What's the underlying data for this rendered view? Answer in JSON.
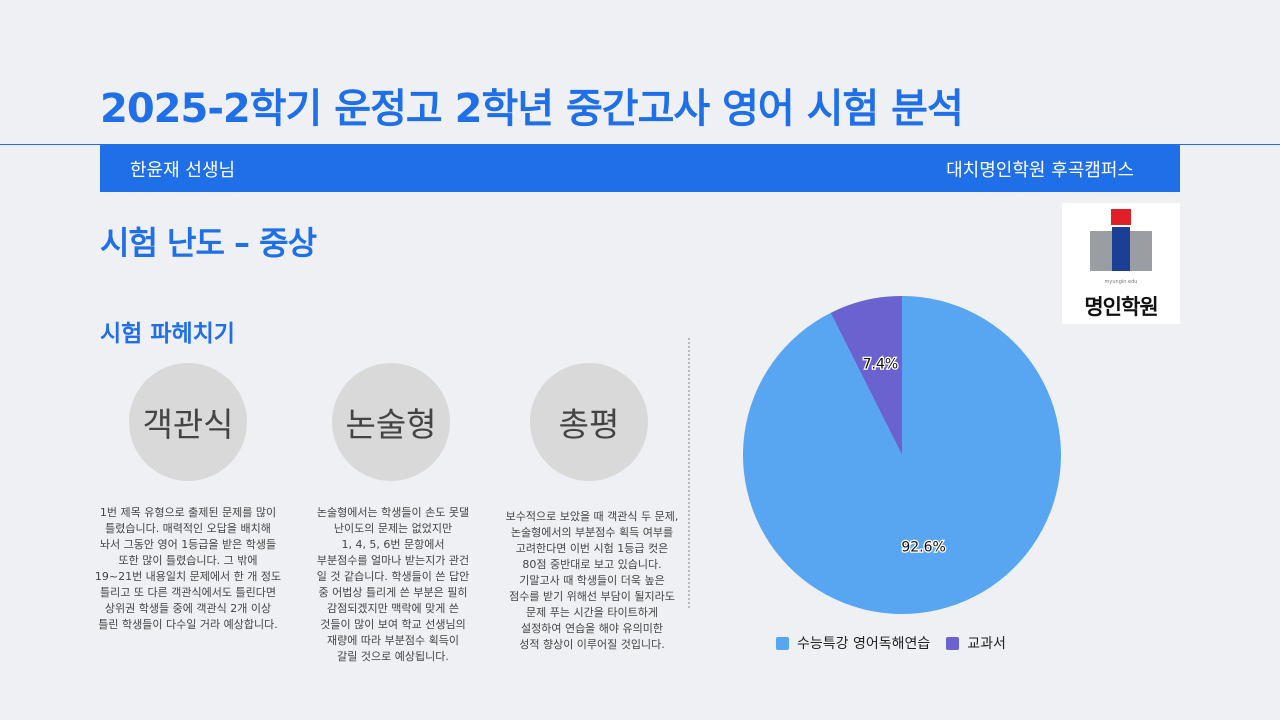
{
  "header": {
    "title": "2025-2학기 운정고 2학년 중간고사 영어 시험 분석",
    "teacher": "한윤재 선생님",
    "academy": "대치명인학원 후곡캠퍼스"
  },
  "difficulty": "시험 난도 – 중상",
  "section_title": "시험 파헤치기",
  "logo": {
    "small_text": "myungin edu",
    "name": "명인학원"
  },
  "cards": [
    {
      "label": "객관식",
      "text": "1번 제목 유형으로 출제된 문제를 많이\n틀렸습니다. 매력적인 오답을 배치해\n놔서 그동안 영어 1등급을 받은 학생들\n또한 많이 틀렸습니다. 그 밖에\n19~21번 내용일치 문제에서 한 개 정도\n틀리고 또 다른 객관식에서도 틀린다면\n상위권 학생들 중에 객관식 2개 이상\n틀린 학생들이 다수일 거라 예상합니다."
    },
    {
      "label": "논술형",
      "text": "논술형에서는 학생들이 손도 못댈\n난이도의 문제는 없었지만\n1, 4, 5, 6번 문항에서\n부분점수를 얼마나 받는지가 관건\n일 것 같습니다. 학생들이 쓴 답안\n중 어법상 틀리게 쓴 부분은 필히\n감점되겠지만 맥락에 맞게 쓴\n것들이 많이 보여 학교 선생님의\n재량에 따라 부분점수 획득이\n갈릴 것으로 예상됩니다."
    },
    {
      "label": "총평",
      "text": "보수적으로 보았을 때 객관식 두 문제,\n논술형에서의 부분점수 획득 여부를\n고려한다면 이번 시험 1등급 컷은\n80점 중반대로 보고 있습니다.\n기말고사 때 학생들이 더욱 높은\n점수를 받기 위해선 부담이 될지라도\n문제 푸는 시간을 타이트하게\n설정하여 연습을 해야 유의미한\n성적 향상이 이루어질 것입니다."
    }
  ],
  "chart_data": {
    "type": "pie",
    "categories": [
      "수능특강 영어독해연습",
      "교과서"
    ],
    "values": [
      92.6,
      7.4
    ],
    "labels": [
      "92.6%",
      "7.4%"
    ],
    "colors": [
      "#58a6f2",
      "#6a63cf"
    ],
    "legend": "bottom"
  }
}
